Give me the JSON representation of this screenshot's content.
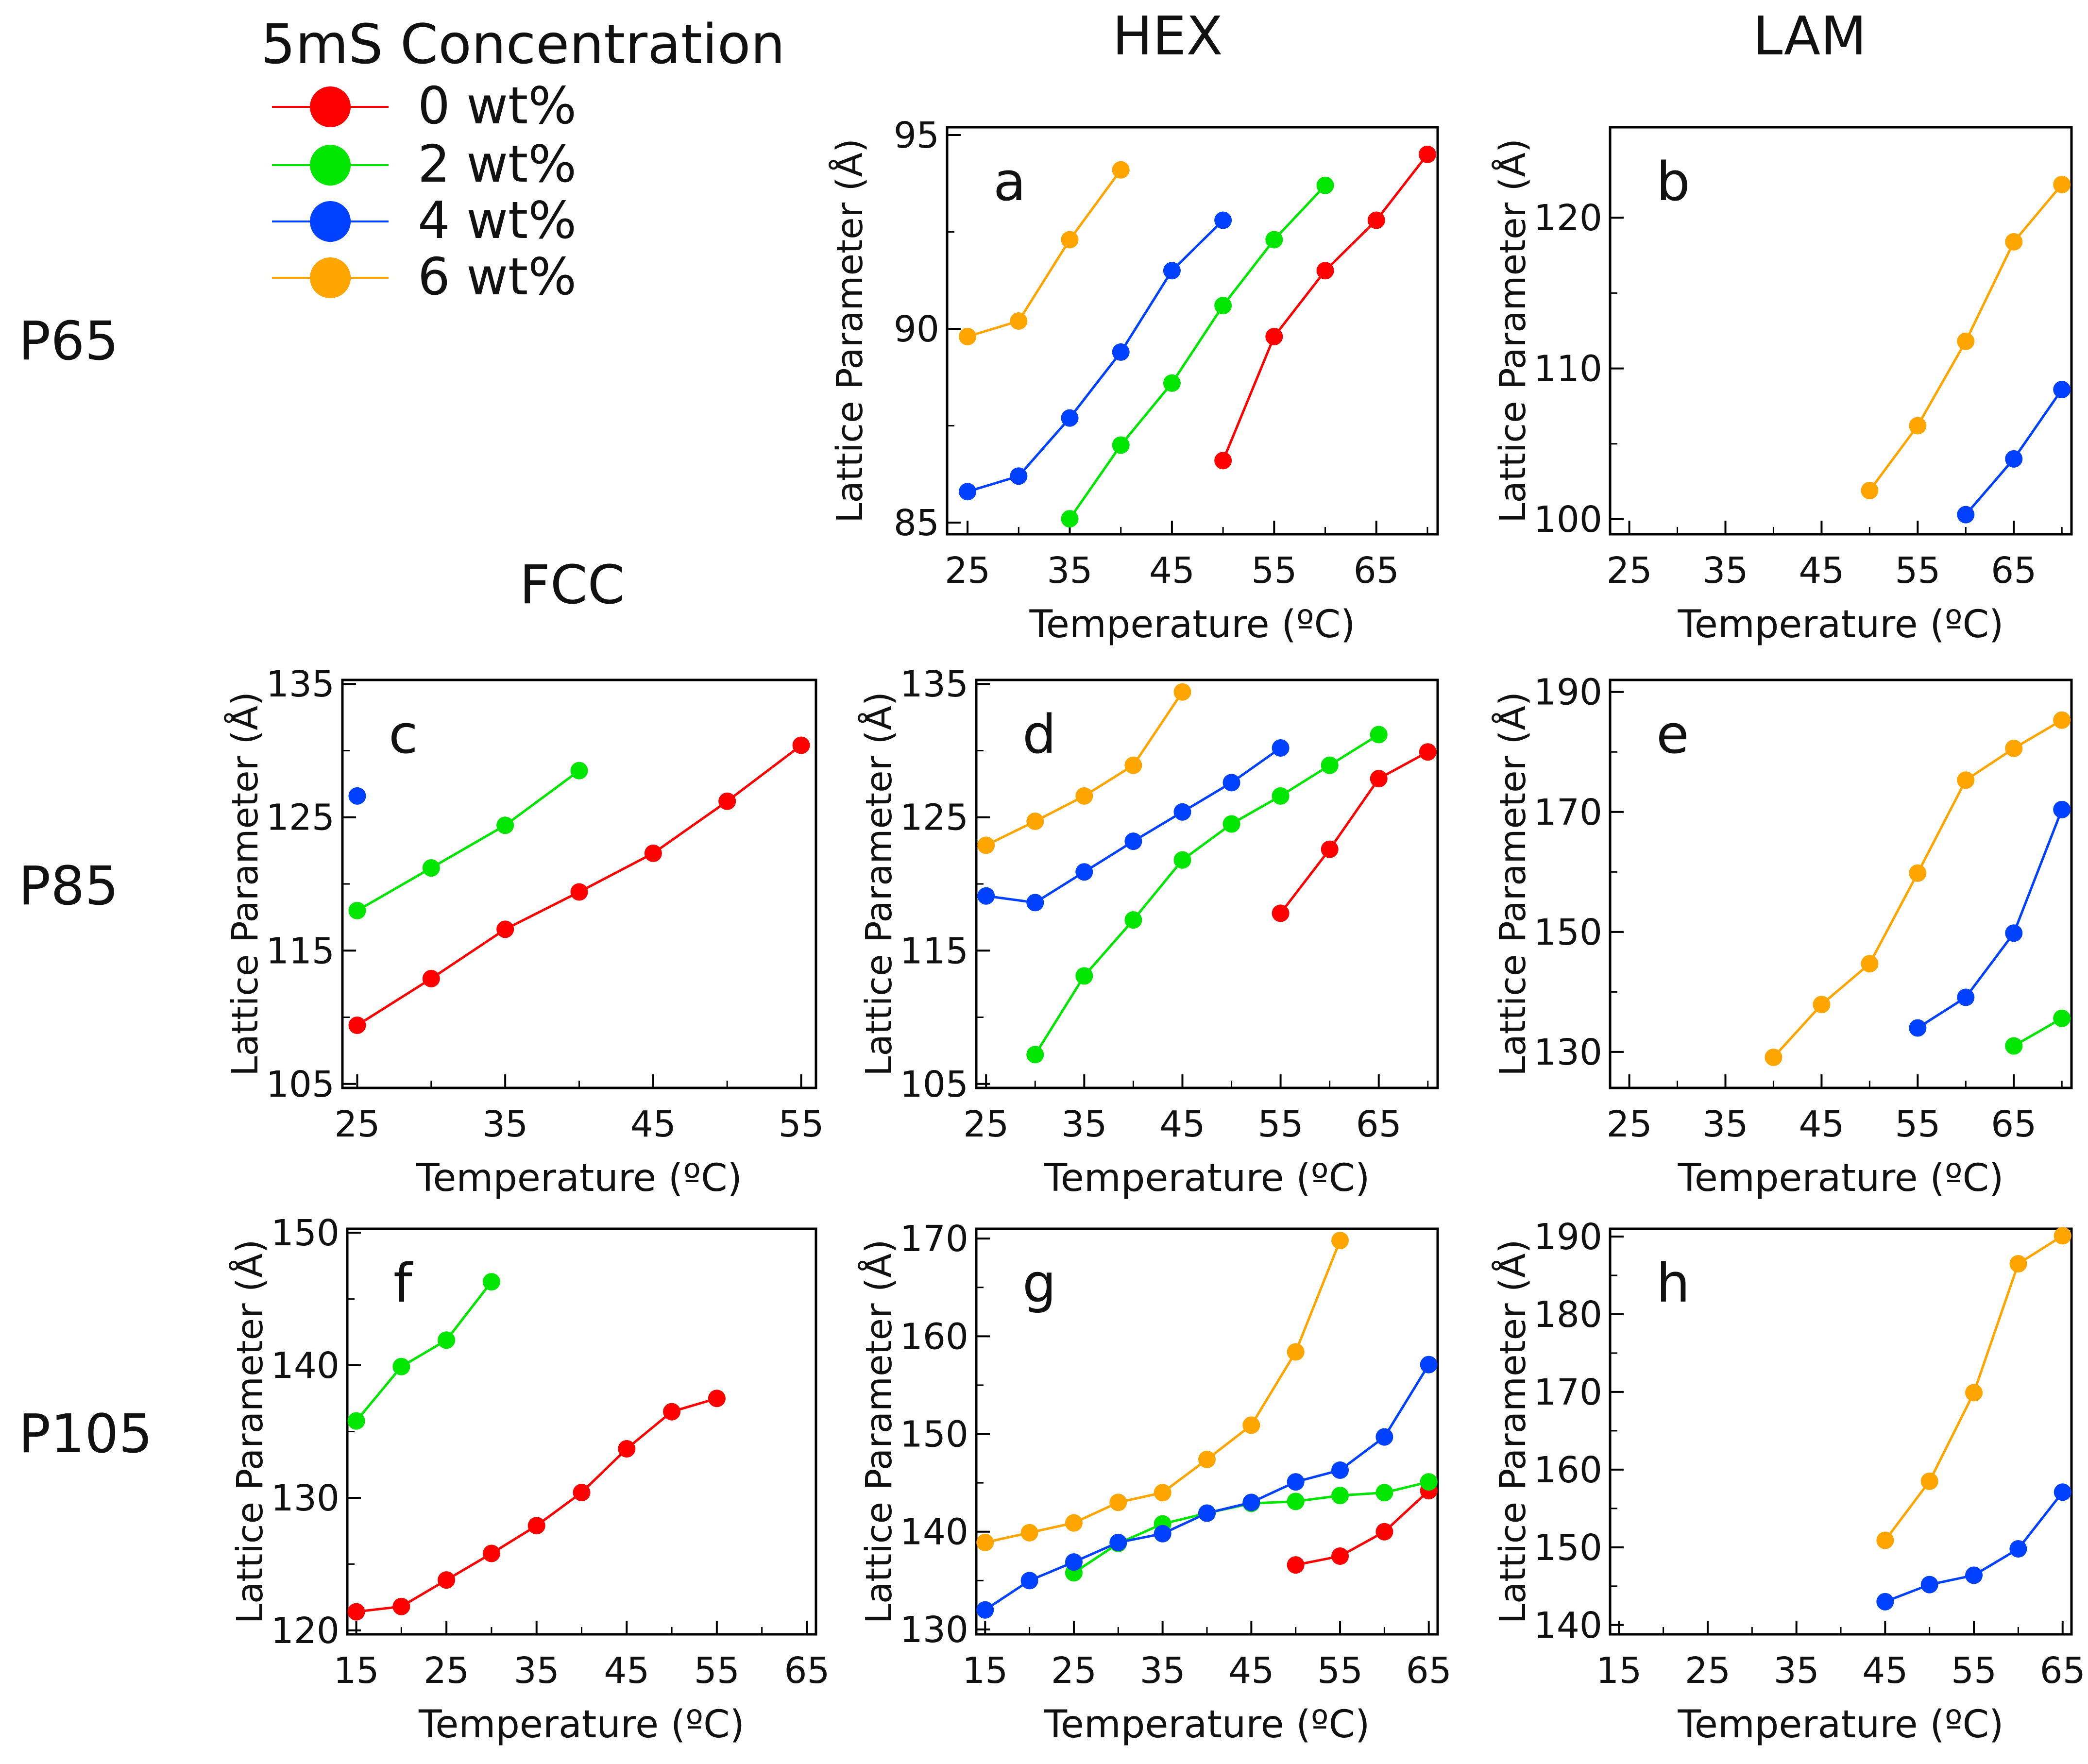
{
  "legend": {
    "title": "5mS Concentration",
    "entries": [
      {
        "label": "0 wt%",
        "color": "#ff0000"
      },
      {
        "label": "2 wt%",
        "color": "#00e600"
      },
      {
        "label": "4 wt%",
        "color": "#0040ff"
      },
      {
        "label": "6 wt%",
        "color": "#ffa500"
      }
    ]
  },
  "column_headers": [
    "HEX",
    "LAM",
    "FCC"
  ],
  "row_labels": [
    "P65",
    "P85",
    "P105"
  ],
  "chart_data": [
    {
      "panel": "a",
      "type": "line",
      "xlabel": "Temperature (ºC)",
      "ylabel": "Lattice Parameter (Å)",
      "xlim": [
        23,
        71
      ],
      "ylim": [
        84.7,
        95.2
      ],
      "xticks": [
        25,
        35,
        45,
        55,
        65
      ],
      "yticks": [
        85,
        90,
        95
      ],
      "series": [
        {
          "name": "0 wt%",
          "color": "#ff0000",
          "points": [
            [
              50,
              86.6
            ],
            [
              55,
              89.8
            ],
            [
              60,
              91.5
            ],
            [
              65,
              92.8
            ],
            [
              70,
              94.5
            ]
          ]
        },
        {
          "name": "2 wt%",
          "color": "#00e600",
          "points": [
            [
              35,
              85.1
            ],
            [
              40,
              87.0
            ],
            [
              45,
              88.6
            ],
            [
              50,
              90.6
            ],
            [
              55,
              92.3
            ],
            [
              60,
              93.7
            ]
          ]
        },
        {
          "name": "4 wt%",
          "color": "#0040ff",
          "points": [
            [
              25,
              85.8
            ],
            [
              30,
              86.2
            ],
            [
              35,
              87.7
            ],
            [
              40,
              89.4
            ],
            [
              45,
              91.5
            ],
            [
              50,
              92.8
            ]
          ]
        },
        {
          "name": "6 wt%",
          "color": "#ffa500",
          "points": [
            [
              25,
              89.8
            ],
            [
              30,
              90.2
            ],
            [
              35,
              92.3
            ],
            [
              40,
              94.1
            ]
          ]
        }
      ]
    },
    {
      "panel": "b",
      "type": "line",
      "xlabel": "Temperature (ºC)",
      "ylabel": "Lattice Parameter (Å)",
      "xlim": [
        23,
        71
      ],
      "ylim": [
        99,
        126
      ],
      "xticks": [
        25,
        35,
        45,
        55,
        65
      ],
      "yticks": [
        100,
        110,
        120
      ],
      "series": [
        {
          "name": "4 wt%",
          "color": "#0040ff",
          "points": [
            [
              60,
              100.3
            ],
            [
              65,
              104.0
            ],
            [
              70,
              108.6
            ]
          ]
        },
        {
          "name": "6 wt%",
          "color": "#ffa500",
          "points": [
            [
              50,
              101.9
            ],
            [
              55,
              106.2
            ],
            [
              60,
              111.8
            ],
            [
              65,
              118.4
            ],
            [
              70,
              122.2
            ]
          ]
        }
      ]
    },
    {
      "panel": "c",
      "type": "line",
      "xlabel": "Temperature (ºC)",
      "ylabel": "Lattice Parameter (Å)",
      "xlim": [
        24,
        56
      ],
      "ylim": [
        104.7,
        135.3
      ],
      "xticks": [
        25,
        35,
        45,
        55
      ],
      "yticks": [
        105,
        115,
        125,
        135
      ],
      "series": [
        {
          "name": "0 wt%",
          "color": "#ff0000",
          "points": [
            [
              25,
              109.4
            ],
            [
              30,
              112.9
            ],
            [
              35,
              116.6
            ],
            [
              40,
              119.4
            ],
            [
              45,
              122.3
            ],
            [
              50,
              126.2
            ],
            [
              55,
              130.4
            ]
          ]
        },
        {
          "name": "2 wt%",
          "color": "#00e600",
          "points": [
            [
              25,
              118.0
            ],
            [
              30,
              121.2
            ],
            [
              35,
              124.4
            ],
            [
              40,
              128.5
            ]
          ]
        },
        {
          "name": "4 wt%",
          "color": "#0040ff",
          "points": [
            [
              25,
              126.6
            ]
          ]
        }
      ]
    },
    {
      "panel": "d",
      "type": "line",
      "xlabel": "Temperature (ºC)",
      "ylabel": "Lattice Parameter (Å)",
      "xlim": [
        24,
        71
      ],
      "ylim": [
        104.7,
        135.3
      ],
      "xticks": [
        25,
        35,
        45,
        55,
        65
      ],
      "yticks": [
        105,
        115,
        125,
        135
      ],
      "series": [
        {
          "name": "0 wt%",
          "color": "#ff0000",
          "points": [
            [
              55,
              117.8
            ],
            [
              60,
              122.6
            ],
            [
              65,
              127.9
            ],
            [
              70,
              129.9
            ]
          ]
        },
        {
          "name": "2 wt%",
          "color": "#00e600",
          "points": [
            [
              30,
              107.2
            ],
            [
              35,
              113.1
            ],
            [
              40,
              117.3
            ],
            [
              45,
              121.8
            ],
            [
              50,
              124.5
            ],
            [
              55,
              126.6
            ],
            [
              60,
              128.9
            ],
            [
              65,
              131.2
            ]
          ]
        },
        {
          "name": "4 wt%",
          "color": "#0040ff",
          "points": [
            [
              25,
              119.1
            ],
            [
              30,
              118.6
            ],
            [
              35,
              120.9
            ],
            [
              40,
              123.2
            ],
            [
              45,
              125.4
            ],
            [
              50,
              127.6
            ],
            [
              55,
              130.2
            ]
          ]
        },
        {
          "name": "6 wt%",
          "color": "#ffa500",
          "points": [
            [
              25,
              122.9
            ],
            [
              30,
              124.7
            ],
            [
              35,
              126.6
            ],
            [
              40,
              128.9
            ],
            [
              45,
              134.4
            ]
          ]
        }
      ]
    },
    {
      "panel": "e",
      "type": "line",
      "xlabel": "Temperature (ºC)",
      "ylabel": "Lattice Parameter (Å)",
      "xlim": [
        23,
        71
      ],
      "ylim": [
        124,
        192
      ],
      "xticks": [
        25,
        35,
        45,
        55,
        65
      ],
      "yticks": [
        130,
        150,
        170,
        190
      ],
      "series": [
        {
          "name": "2 wt%",
          "color": "#00e600",
          "points": [
            [
              65,
              131.0
            ],
            [
              70,
              135.6
            ]
          ]
        },
        {
          "name": "4 wt%",
          "color": "#0040ff",
          "points": [
            [
              55,
              134.0
            ],
            [
              60,
              139.1
            ],
            [
              65,
              149.8
            ],
            [
              70,
              170.4
            ]
          ]
        },
        {
          "name": "6 wt%",
          "color": "#ffa500",
          "points": [
            [
              40,
              129.1
            ],
            [
              45,
              137.9
            ],
            [
              50,
              144.7
            ],
            [
              55,
              159.8
            ],
            [
              60,
              175.3
            ],
            [
              65,
              180.6
            ],
            [
              70,
              185.3
            ]
          ]
        }
      ]
    },
    {
      "panel": "f",
      "type": "line",
      "xlabel": "Temperature (ºC)",
      "ylabel": "Lattice Parameter (Å)",
      "xlim": [
        14,
        66
      ],
      "ylim": [
        119.7,
        150.3
      ],
      "xticks": [
        15,
        25,
        35,
        45,
        55,
        65
      ],
      "yticks": [
        120,
        130,
        140,
        150
      ],
      "series": [
        {
          "name": "0 wt%",
          "color": "#ff0000",
          "points": [
            [
              15,
              121.4
            ],
            [
              20,
              121.8
            ],
            [
              25,
              123.8
            ],
            [
              30,
              125.8
            ],
            [
              35,
              127.9
            ],
            [
              40,
              130.4
            ],
            [
              45,
              133.7
            ],
            [
              50,
              136.5
            ],
            [
              55,
              137.5
            ]
          ]
        },
        {
          "name": "2 wt%",
          "color": "#00e600",
          "points": [
            [
              15,
              135.8
            ],
            [
              20,
              139.9
            ],
            [
              25,
              141.9
            ],
            [
              30,
              146.3
            ]
          ]
        }
      ]
    },
    {
      "panel": "g",
      "type": "line",
      "xlabel": "Temperature (ºC)",
      "ylabel": "Lattice Parameter (Å)",
      "xlim": [
        14,
        66
      ],
      "ylim": [
        129.5,
        171
      ],
      "xticks": [
        15,
        25,
        35,
        45,
        55,
        65
      ],
      "yticks": [
        130,
        140,
        150,
        160,
        170
      ],
      "series": [
        {
          "name": "0 wt%",
          "color": "#ff0000",
          "points": [
            [
              50,
              136.6
            ],
            [
              55,
              137.5
            ],
            [
              60,
              140.0
            ],
            [
              65,
              144.2
            ]
          ]
        },
        {
          "name": "2 wt%",
          "color": "#00e600",
          "points": [
            [
              25,
              135.8
            ],
            [
              30,
              138.8
            ],
            [
              35,
              140.8
            ],
            [
              40,
              141.9
            ],
            [
              45,
              142.9
            ],
            [
              50,
              143.1
            ],
            [
              55,
              143.7
            ],
            [
              60,
              144.0
            ],
            [
              65,
              145.1
            ]
          ]
        },
        {
          "name": "4 wt%",
          "color": "#0040ff",
          "points": [
            [
              15,
              132.0
            ],
            [
              20,
              135.0
            ],
            [
              25,
              136.9
            ],
            [
              30,
              138.9
            ],
            [
              35,
              139.8
            ],
            [
              40,
              141.9
            ],
            [
              45,
              143.0
            ],
            [
              50,
              145.1
            ],
            [
              55,
              146.3
            ],
            [
              60,
              149.7
            ],
            [
              65,
              157.1
            ]
          ]
        },
        {
          "name": "6 wt%",
          "color": "#ffa500",
          "points": [
            [
              15,
              138.9
            ],
            [
              20,
              139.9
            ],
            [
              25,
              140.9
            ],
            [
              30,
              143.0
            ],
            [
              35,
              144.0
            ],
            [
              40,
              147.4
            ],
            [
              45,
              150.9
            ],
            [
              50,
              158.4
            ],
            [
              55,
              169.8
            ]
          ]
        }
      ]
    },
    {
      "panel": "h",
      "type": "line",
      "xlabel": "Temperature (ºC)",
      "ylabel": "Lattice Parameter (Å)",
      "xlim": [
        14,
        66
      ],
      "ylim": [
        138.8,
        191
      ],
      "xticks": [
        15,
        25,
        35,
        45,
        55,
        65
      ],
      "yticks": [
        140,
        150,
        160,
        170,
        180,
        190
      ],
      "series": [
        {
          "name": "4 wt%",
          "color": "#0040ff",
          "points": [
            [
              45,
              143.0
            ],
            [
              50,
              145.2
            ],
            [
              55,
              146.4
            ],
            [
              60,
              149.8
            ],
            [
              65,
              157.1
            ]
          ]
        },
        {
          "name": "6 wt%",
          "color": "#ffa500",
          "points": [
            [
              45,
              150.9
            ],
            [
              50,
              158.5
            ],
            [
              55,
              169.9
            ],
            [
              60,
              186.5
            ],
            [
              65,
              190.1
            ]
          ]
        }
      ]
    }
  ]
}
